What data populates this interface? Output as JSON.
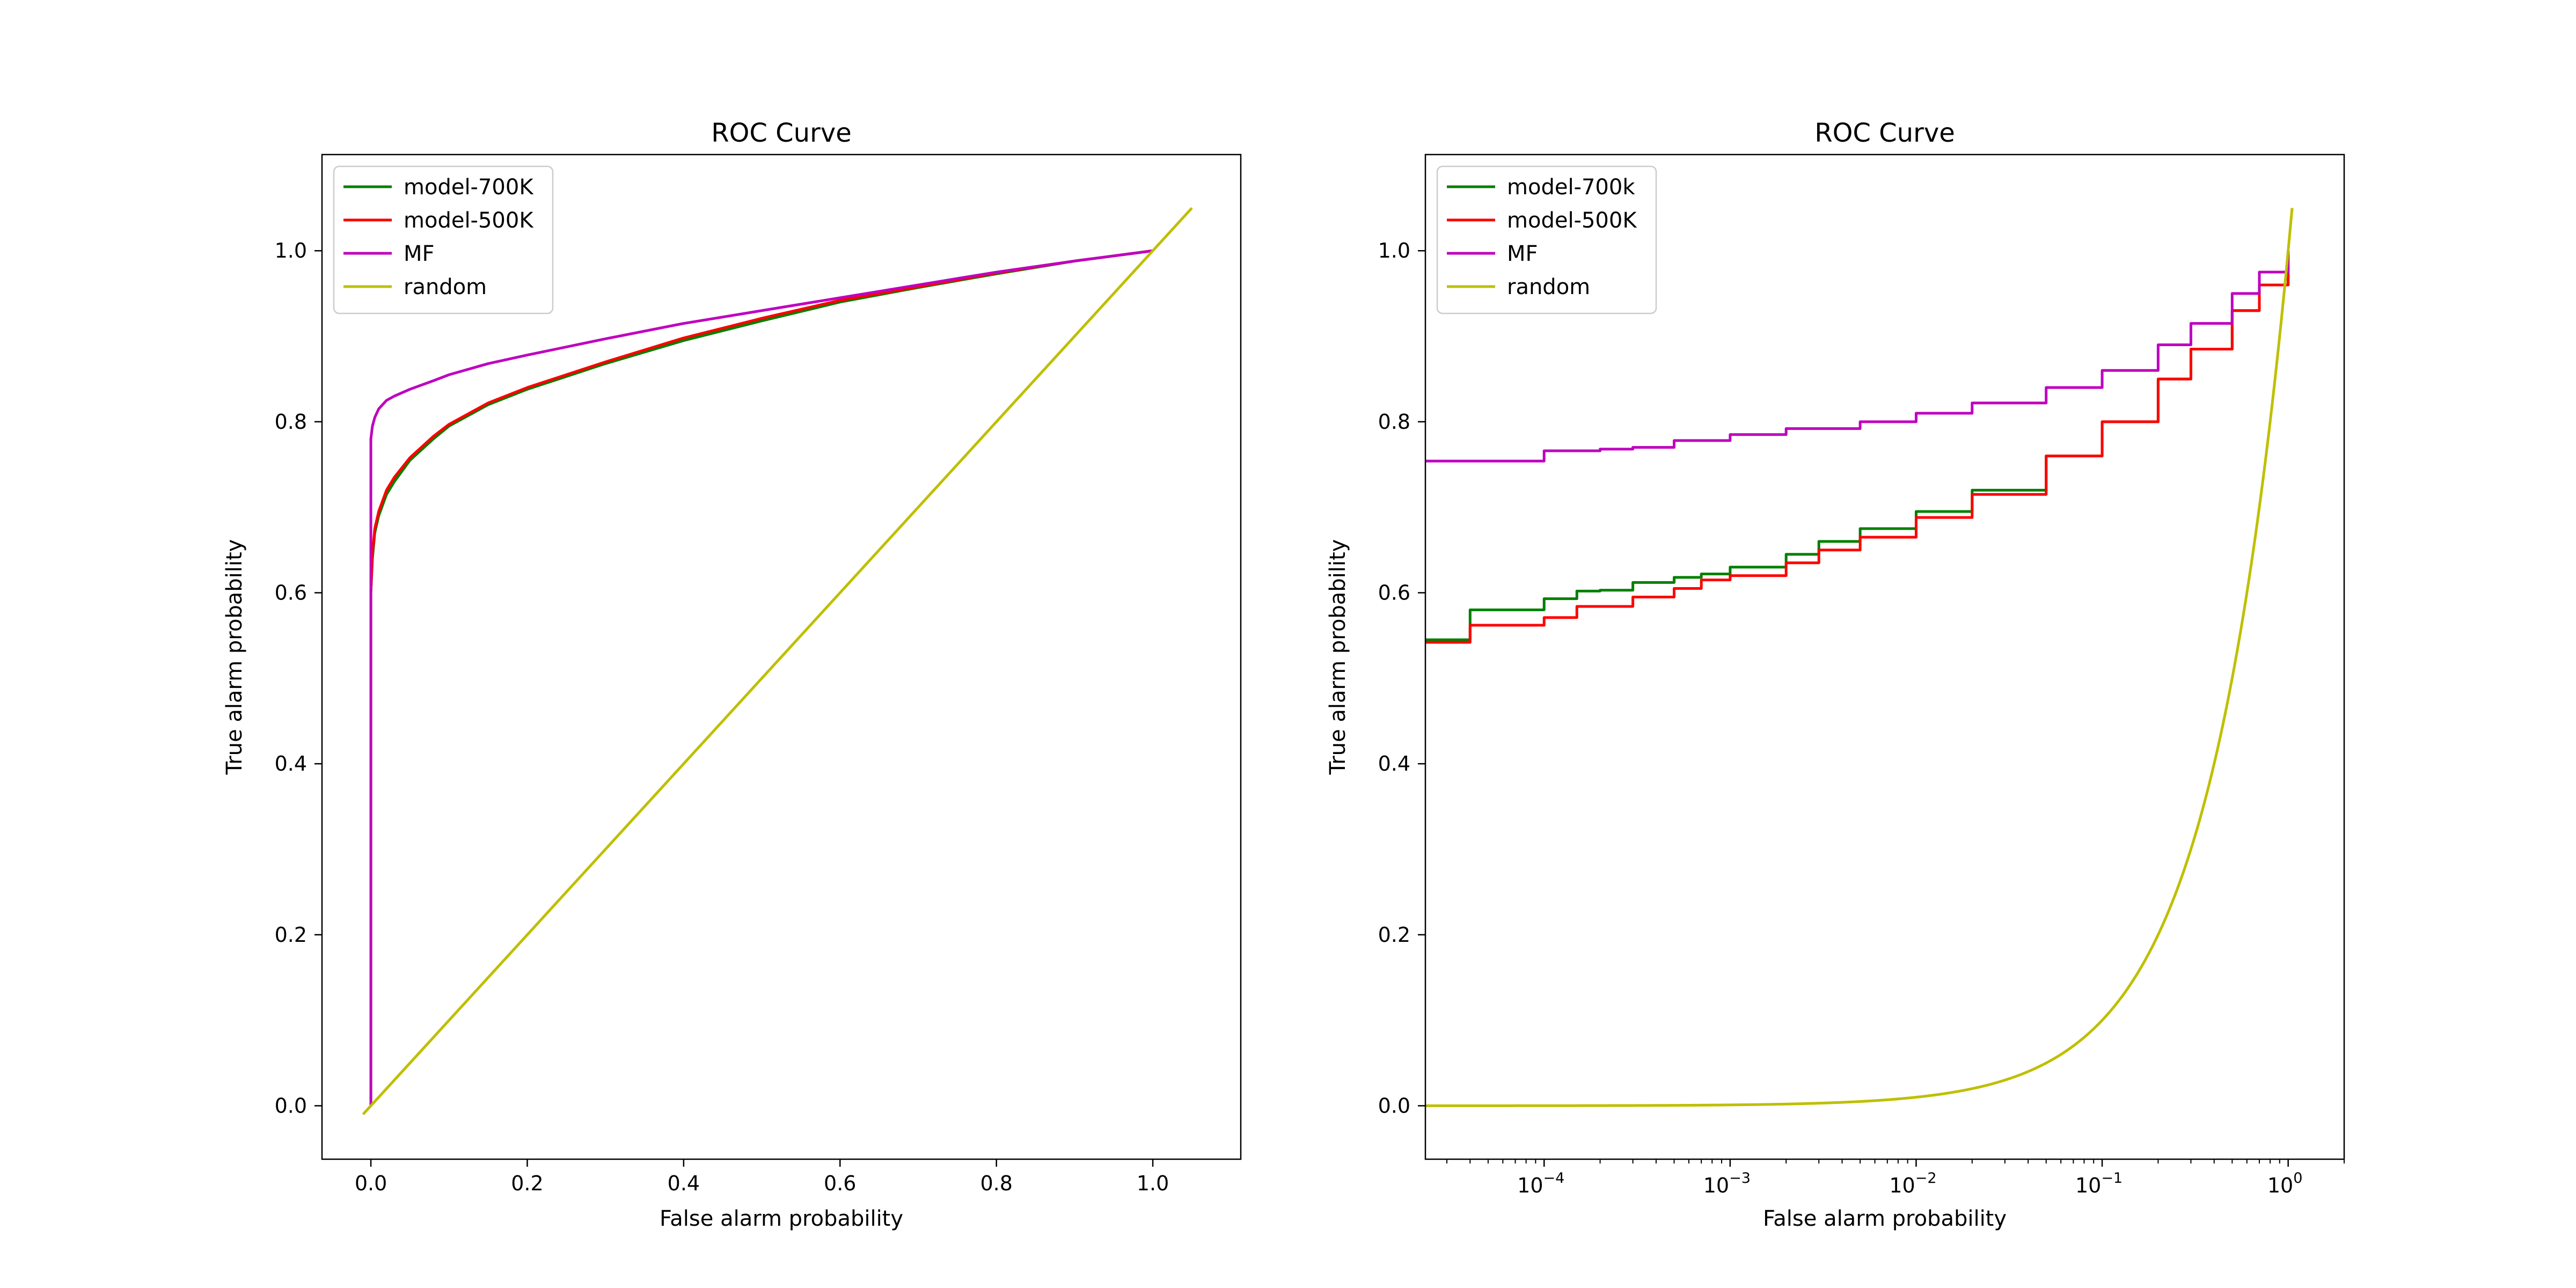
{
  "chart_data": [
    {
      "type": "line",
      "title": "ROC Curve",
      "xlabel": "False alarm probability",
      "ylabel": "True alarm probability",
      "xscale": "linear",
      "xlim": [
        -0.0625,
        1.1125
      ],
      "ylim": [
        -0.0625,
        1.1125
      ],
      "xticks": [
        0.0,
        0.2,
        0.4,
        0.6,
        0.8,
        1.0
      ],
      "xtick_labels": [
        "0.0",
        "0.2",
        "0.4",
        "0.6",
        "0.8",
        "1.0"
      ],
      "yticks": [
        0.0,
        0.2,
        0.4,
        0.6,
        0.8,
        1.0
      ],
      "ytick_labels": [
        "0.0",
        "0.2",
        "0.4",
        "0.6",
        "0.8",
        "1.0"
      ],
      "legend_position": "upper left",
      "grid": false,
      "series": [
        {
          "name": "model-700K",
          "color": "#008000",
          "x": [
            0,
            0,
            0.002,
            0.005,
            0.01,
            0.02,
            0.03,
            0.05,
            0.08,
            0.1,
            0.15,
            0.2,
            0.3,
            0.4,
            0.5,
            0.6,
            0.7,
            0.8,
            0.9,
            1.0
          ],
          "y": [
            0,
            0.6,
            0.64,
            0.67,
            0.69,
            0.715,
            0.73,
            0.755,
            0.78,
            0.795,
            0.82,
            0.838,
            0.868,
            0.895,
            0.918,
            0.94,
            0.957,
            0.973,
            0.988,
            1.0
          ]
        },
        {
          "name": "model-500K",
          "color": "#ff0000",
          "x": [
            0,
            0,
            0.002,
            0.005,
            0.01,
            0.02,
            0.03,
            0.05,
            0.08,
            0.1,
            0.15,
            0.2,
            0.3,
            0.4,
            0.5,
            0.6,
            0.7,
            0.8,
            0.9,
            1.0
          ],
          "y": [
            0,
            0.6,
            0.645,
            0.675,
            0.695,
            0.72,
            0.735,
            0.758,
            0.783,
            0.797,
            0.822,
            0.84,
            0.87,
            0.898,
            0.921,
            0.942,
            0.958,
            0.974,
            0.988,
            1.0
          ]
        },
        {
          "name": "MF",
          "color": "#bf00bf",
          "x": [
            0,
            0,
            0.002,
            0.005,
            0.01,
            0.02,
            0.03,
            0.05,
            0.08,
            0.1,
            0.15,
            0.2,
            0.3,
            0.4,
            0.5,
            0.6,
            0.7,
            0.8,
            0.9,
            1.0
          ],
          "y": [
            0,
            0.78,
            0.795,
            0.805,
            0.815,
            0.825,
            0.83,
            0.838,
            0.848,
            0.855,
            0.868,
            0.878,
            0.897,
            0.915,
            0.93,
            0.945,
            0.96,
            0.975,
            0.988,
            1.0
          ]
        },
        {
          "name": "random",
          "color": "#bfbf00",
          "x": [
            -0.01,
            1.05
          ],
          "y": [
            -0.01,
            1.05
          ]
        }
      ]
    },
    {
      "type": "line",
      "title": "ROC Curve",
      "xlabel": "False alarm probability",
      "ylabel": "True alarm probability",
      "xscale": "log",
      "xlim": [
        2.3e-05,
        2.0
      ],
      "ylim": [
        -0.0625,
        1.1125
      ],
      "xticks": [
        0.0001,
        0.001,
        0.01,
        0.1,
        1.0
      ],
      "xtick_labels": [
        {
          "base": "10",
          "exp": "−4"
        },
        {
          "base": "10",
          "exp": "−3"
        },
        {
          "base": "10",
          "exp": "−2"
        },
        {
          "base": "10",
          "exp": "−1"
        },
        {
          "base": "10",
          "exp": "0"
        }
      ],
      "yticks": [
        0.0,
        0.2,
        0.4,
        0.6,
        0.8,
        1.0
      ],
      "ytick_labels": [
        "0.0",
        "0.2",
        "0.4",
        "0.6",
        "0.8",
        "1.0"
      ],
      "legend_position": "upper left",
      "grid": false,
      "series": [
        {
          "name": "model-700k",
          "color": "#008000",
          "step": true,
          "x": [
            2.3e-05,
            4e-05,
            4e-05,
            0.0001,
            0.0001,
            0.00015,
            0.00015,
            0.0002,
            0.0003,
            0.0005,
            0.0007,
            0.001,
            0.002,
            0.003,
            0.005,
            0.01,
            0.02,
            0.05,
            0.1,
            0.2,
            0.3,
            0.5,
            0.7,
            1.0
          ],
          "y": [
            0.545,
            0.545,
            0.58,
            0.58,
            0.593,
            0.593,
            0.602,
            0.603,
            0.612,
            0.618,
            0.622,
            0.63,
            0.645,
            0.66,
            0.675,
            0.695,
            0.72,
            0.76,
            0.8,
            0.85,
            0.885,
            0.93,
            0.96,
            1.0
          ]
        },
        {
          "name": "model-500K",
          "color": "#ff0000",
          "step": true,
          "x": [
            2.3e-05,
            4e-05,
            4e-05,
            0.0001,
            0.0001,
            0.00015,
            0.00015,
            0.0003,
            0.0003,
            0.0005,
            0.0007,
            0.001,
            0.002,
            0.003,
            0.005,
            0.01,
            0.02,
            0.05,
            0.1,
            0.2,
            0.3,
            0.5,
            0.7,
            1.0
          ],
          "y": [
            0.542,
            0.542,
            0.562,
            0.562,
            0.571,
            0.571,
            0.584,
            0.584,
            0.595,
            0.605,
            0.615,
            0.62,
            0.635,
            0.65,
            0.665,
            0.688,
            0.715,
            0.76,
            0.8,
            0.85,
            0.885,
            0.93,
            0.96,
            1.0
          ]
        },
        {
          "name": "MF",
          "color": "#bf00bf",
          "step": true,
          "x": [
            2.3e-05,
            0.0001,
            0.0001,
            0.0002,
            0.0003,
            0.0005,
            0.001,
            0.002,
            0.005,
            0.01,
            0.02,
            0.05,
            0.1,
            0.2,
            0.3,
            0.5,
            0.7,
            1.0
          ],
          "y": [
            0.754,
            0.754,
            0.766,
            0.768,
            0.77,
            0.778,
            0.785,
            0.792,
            0.8,
            0.81,
            0.822,
            0.84,
            0.86,
            0.89,
            0.915,
            0.95,
            0.975,
            1.0
          ]
        },
        {
          "name": "random",
          "color": "#bfbf00",
          "function": "y = x",
          "x_range": [
            2.3e-05,
            1.05
          ]
        }
      ]
    }
  ]
}
